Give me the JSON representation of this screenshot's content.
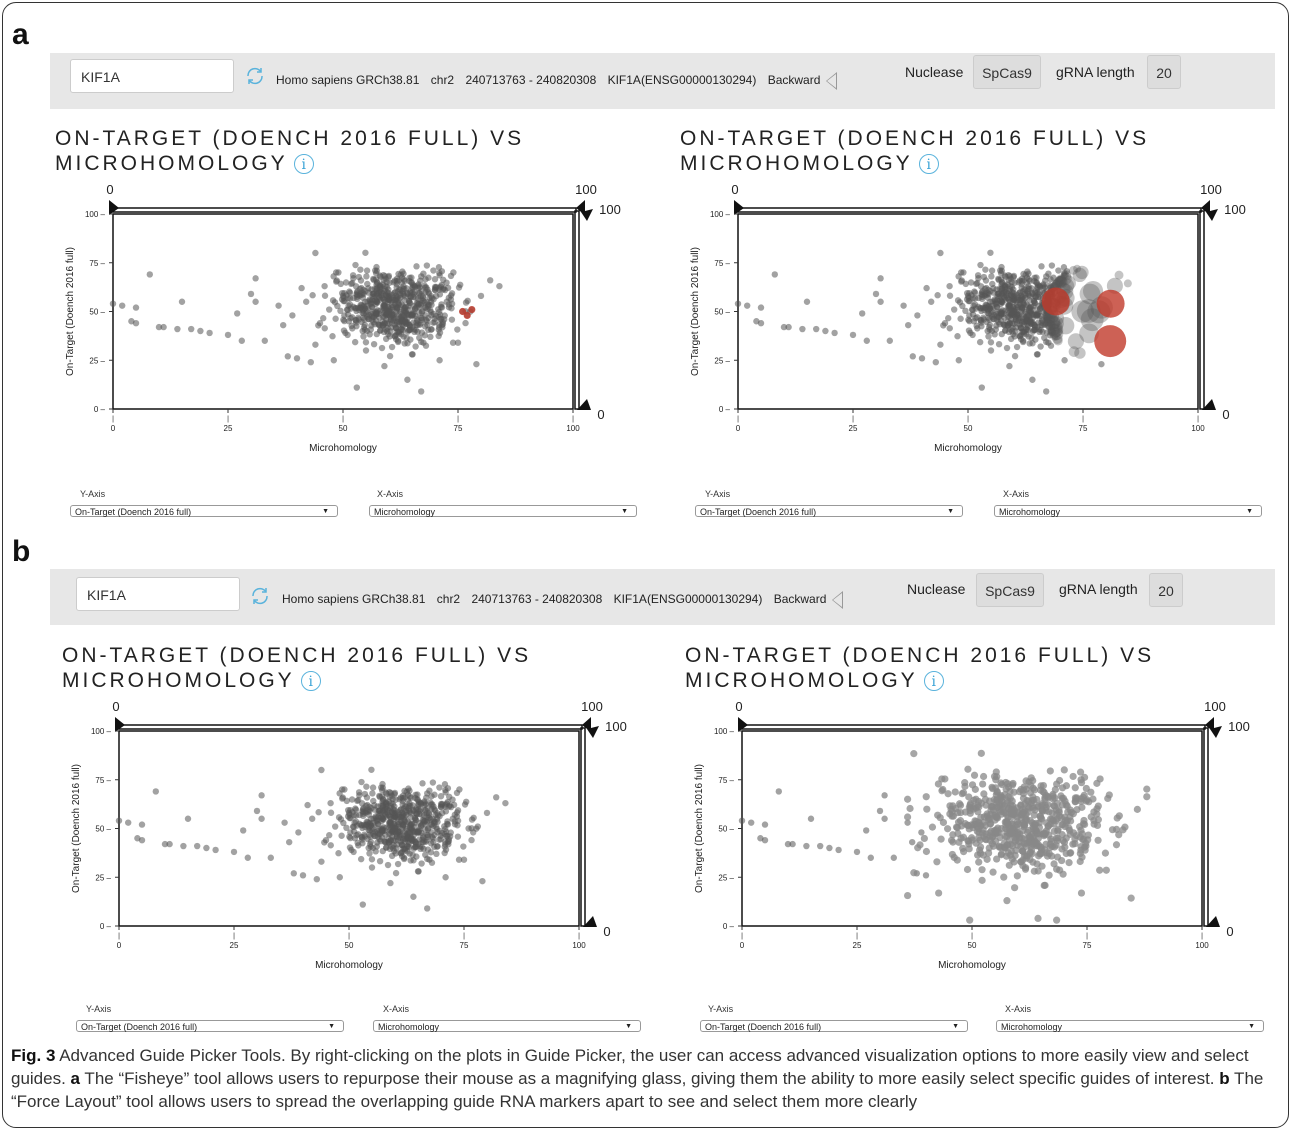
{
  "panels": [
    {
      "letter": "a",
      "toolbar": {
        "gene": "KIF1A",
        "organism": "Homo sapiens GRCh38.81",
        "chromosome": "chr2",
        "range": "240713763 - 240820308",
        "gene_id": "KIF1A(ENSG00000130294)",
        "strand": "Backward",
        "nuclease_label": "Nuclease",
        "nuclease_value": "SpCas9",
        "grna_label": "gRNA length",
        "grna_value": "20"
      },
      "plots": [
        {
          "title_line1": "ON-TARGET (DOENCH 2016 FULL) VS",
          "title_line2": "MICROHOMOLOGY",
          "info_icon": "info-icon",
          "mode": "fisheye-off",
          "y_axis_label": "Y-Axis",
          "y_axis_value": "On-Target (Doench 2016 full)",
          "x_axis_label": "X-Axis",
          "x_axis_value": "Microhomology"
        },
        {
          "title_line1": "ON-TARGET (DOENCH 2016 FULL) VS",
          "title_line2": "MICROHOMOLOGY",
          "info_icon": "info-icon",
          "mode": "fisheye",
          "y_axis_label": "Y-Axis",
          "y_axis_value": "On-Target (Doench 2016 full)",
          "x_axis_label": "X-Axis",
          "x_axis_value": "Microhomology"
        }
      ]
    },
    {
      "letter": "b",
      "toolbar": {
        "gene": "KIF1A",
        "organism": "Homo sapiens GRCh38.81",
        "chromosome": "chr2",
        "range": "240713763 - 240820308",
        "gene_id": "KIF1A(ENSG00000130294)",
        "strand": "Backward",
        "nuclease_label": "Nuclease",
        "nuclease_value": "SpCas9",
        "grna_label": "gRNA length",
        "grna_value": "20"
      },
      "plots": [
        {
          "title_line1": "ON-TARGET (DOENCH 2016 FULL) VS",
          "title_line2": "MICROHOMOLOGY",
          "info_icon": "info-icon",
          "mode": "normal",
          "y_axis_label": "Y-Axis",
          "y_axis_value": "On-Target (Doench 2016 full)",
          "x_axis_label": "X-Axis",
          "x_axis_value": "Microhomology"
        },
        {
          "title_line1": "ON-TARGET (DOENCH 2016 FULL) VS",
          "title_line2": "MICROHOMOLOGY",
          "info_icon": "info-icon",
          "mode": "force",
          "y_axis_label": "Y-Axis",
          "y_axis_value": "On-Target (Doench 2016 full)",
          "x_axis_label": "X-Axis",
          "x_axis_value": "Microhomology"
        }
      ]
    }
  ],
  "chart_data": {
    "type": "scatter",
    "xlabel": "Microhomology",
    "ylabel": "On-Target (Doench 2016 full)",
    "xlim": [
      0,
      100
    ],
    "ylim": [
      0,
      100
    ],
    "x_ticks": [
      "0",
      "25",
      "50",
      "75",
      "100"
    ],
    "y_ticks": [
      "0",
      "25",
      "50",
      "75",
      "100"
    ],
    "brush_top_left": "0",
    "brush_top_right": "100",
    "brush_right_top": "100",
    "brush_right_bottom": "0",
    "highlight_color": "#c0392b",
    "point_color": "#555555",
    "points": [
      [
        0,
        54
      ],
      [
        2,
        53
      ],
      [
        4,
        45
      ],
      [
        5,
        44
      ],
      [
        5,
        52
      ],
      [
        8,
        69
      ],
      [
        10,
        42
      ],
      [
        11,
        42
      ],
      [
        14,
        41
      ],
      [
        15,
        55
      ],
      [
        17,
        41
      ],
      [
        19,
        40
      ],
      [
        21,
        39
      ],
      [
        25,
        38
      ],
      [
        27,
        49
      ],
      [
        28,
        35
      ],
      [
        30,
        59
      ],
      [
        31,
        55
      ],
      [
        31,
        67
      ],
      [
        33,
        35
      ],
      [
        36,
        53
      ],
      [
        37,
        43
      ],
      [
        38,
        27
      ],
      [
        39,
        48
      ],
      [
        40,
        26
      ],
      [
        41,
        62
      ],
      [
        42,
        55
      ],
      [
        43,
        24
      ],
      [
        44,
        33
      ],
      [
        44,
        80
      ],
      [
        45,
        44
      ],
      [
        46,
        63
      ],
      [
        47,
        51
      ],
      [
        48,
        25
      ],
      [
        49,
        70
      ],
      [
        50,
        58
      ],
      [
        51,
        38
      ],
      [
        52,
        47
      ],
      [
        53,
        11
      ],
      [
        54,
        62
      ],
      [
        55,
        30
      ],
      [
        56,
        54
      ],
      [
        57,
        71
      ],
      [
        58,
        43
      ],
      [
        59,
        22
      ],
      [
        60,
        56
      ],
      [
        61,
        65
      ],
      [
        62,
        35
      ],
      [
        63,
        48
      ],
      [
        64,
        15
      ],
      [
        64,
        59
      ],
      [
        65,
        28
      ],
      [
        66,
        43
      ],
      [
        67,
        9
      ],
      [
        67,
        68
      ],
      [
        68,
        52
      ],
      [
        69,
        37
      ],
      [
        70,
        61
      ],
      [
        71,
        25
      ],
      [
        72,
        46
      ],
      [
        73,
        57
      ],
      [
        74,
        70
      ],
      [
        75,
        34
      ],
      [
        76,
        50
      ],
      [
        77,
        48
      ],
      [
        78,
        51
      ],
      [
        79,
        23
      ],
      [
        80,
        58
      ],
      [
        82,
        66
      ],
      [
        84,
        63
      ]
    ]
  },
  "caption": {
    "fig_label": "Fig. 3",
    "text": " Advanced Guide Picker Tools. By right-clicking on the plots in Guide Picker, the user can access advanced visualization options to more easily view and select guides. ",
    "a_label": "a",
    "a_text": " The “Fisheye” tool allows users to repurpose their mouse as a magnifying glass, giving them the ability to more easily select specific guides of interest. ",
    "b_label": "b",
    "b_text": " The “Force Layout” tool allows users to spread the overlapping guide RNA markers apart to see and select them more clearly"
  }
}
